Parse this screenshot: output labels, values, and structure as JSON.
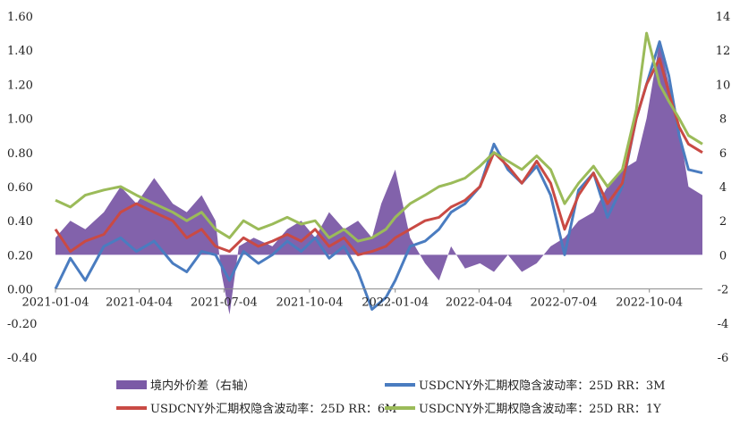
{
  "chart_data": {
    "type": "line",
    "x_ticks": [
      "2021-01-04",
      "2021-04-04",
      "2021-07-04",
      "2021-10-04",
      "2022-01-04",
      "2022-04-04",
      "2022-07-04",
      "2022-10-04"
    ],
    "y_left_ticks": [
      "1.60",
      "1.40",
      "1.20",
      "1.00",
      "0.80",
      "0.60",
      "0.40",
      "0.20",
      "0.00",
      "-0.20",
      "-0.40"
    ],
    "y_right_ticks": [
      "14",
      "12",
      "10",
      "8",
      "6",
      "4",
      "2",
      "0",
      "-2",
      "-4",
      "-6"
    ],
    "ylim_left": [
      -0.4,
      1.6
    ],
    "ylim_right": [
      -6,
      14
    ],
    "x_start": "2021-01-04",
    "x_end": "2022-11-30",
    "legend_position": "bottom",
    "series": [
      {
        "name": "境内外价差（右轴）",
        "type": "area",
        "axis": "right",
        "color": "#7B5AA6",
        "x": [
          "2021-01-04",
          "2021-01-20",
          "2021-02-05",
          "2021-02-25",
          "2021-03-15",
          "2021-04-01",
          "2021-04-20",
          "2021-05-10",
          "2021-05-25",
          "2021-06-10",
          "2021-06-25",
          "2021-07-01",
          "2021-07-10",
          "2021-07-20",
          "2021-08-05",
          "2021-08-25",
          "2021-09-10",
          "2021-09-25",
          "2021-10-10",
          "2021-10-25",
          "2021-11-10",
          "2021-11-25",
          "2021-12-10",
          "2021-12-20",
          "2022-01-04",
          "2022-01-20",
          "2022-02-05",
          "2022-02-20",
          "2022-03-05",
          "2022-03-20",
          "2022-04-05",
          "2022-04-20",
          "2022-05-05",
          "2022-05-20",
          "2022-06-05",
          "2022-06-20",
          "2022-07-05",
          "2022-07-20",
          "2022-08-05",
          "2022-08-20",
          "2022-09-05",
          "2022-09-20",
          "2022-10-01",
          "2022-10-15",
          "2022-10-25",
          "2022-11-05",
          "2022-11-15",
          "2022-11-30"
        ],
        "values": [
          1.0,
          2.0,
          1.5,
          2.5,
          4.0,
          3.0,
          4.5,
          3.0,
          2.5,
          3.5,
          2.0,
          -1.0,
          -3.5,
          0.5,
          1.0,
          0.5,
          1.5,
          2.0,
          1.0,
          2.5,
          1.5,
          2.0,
          1.0,
          3.0,
          5.0,
          1.0,
          -0.5,
          -1.5,
          0.5,
          -0.8,
          -0.5,
          -1.0,
          0.0,
          -1.0,
          -0.5,
          0.5,
          1.0,
          2.0,
          2.5,
          4.0,
          5.0,
          5.5,
          8.0,
          12.5,
          10.0,
          7.5,
          4.0,
          3.5
        ]
      },
      {
        "name": "USDCNY外汇期权隐含波动率：25D RR：3M",
        "type": "line",
        "axis": "left",
        "color": "#4A7CC0",
        "x": [
          "2021-01-04",
          "2021-01-20",
          "2021-02-05",
          "2021-02-25",
          "2021-03-15",
          "2021-04-01",
          "2021-04-20",
          "2021-05-10",
          "2021-05-25",
          "2021-06-10",
          "2021-06-25",
          "2021-07-10",
          "2021-07-25",
          "2021-08-10",
          "2021-08-25",
          "2021-09-10",
          "2021-09-25",
          "2021-10-10",
          "2021-10-25",
          "2021-11-10",
          "2021-11-25",
          "2021-12-10",
          "2021-12-25",
          "2022-01-04",
          "2022-01-20",
          "2022-02-05",
          "2022-02-20",
          "2022-03-05",
          "2022-03-20",
          "2022-04-05",
          "2022-04-20",
          "2022-05-05",
          "2022-05-20",
          "2022-06-05",
          "2022-06-20",
          "2022-07-05",
          "2022-07-20",
          "2022-08-05",
          "2022-08-20",
          "2022-09-05",
          "2022-09-20",
          "2022-10-01",
          "2022-10-15",
          "2022-10-25",
          "2022-11-05",
          "2022-11-15",
          "2022-11-30"
        ],
        "values": [
          0.0,
          0.18,
          0.05,
          0.25,
          0.3,
          0.22,
          0.28,
          0.15,
          0.1,
          0.22,
          0.2,
          0.05,
          0.22,
          0.15,
          0.2,
          0.28,
          0.22,
          0.3,
          0.18,
          0.25,
          0.1,
          -0.12,
          -0.05,
          0.05,
          0.25,
          0.28,
          0.35,
          0.45,
          0.5,
          0.6,
          0.85,
          0.7,
          0.62,
          0.72,
          0.55,
          0.2,
          0.58,
          0.68,
          0.42,
          0.6,
          1.0,
          1.2,
          1.45,
          1.25,
          0.9,
          0.7,
          0.68
        ]
      },
      {
        "name": "USDCNY外汇期权隐含波动率：25D RR：6M",
        "type": "line",
        "axis": "left",
        "color": "#C94A44",
        "x": [
          "2021-01-04",
          "2021-01-20",
          "2021-02-05",
          "2021-02-25",
          "2021-03-15",
          "2021-04-01",
          "2021-04-20",
          "2021-05-10",
          "2021-05-25",
          "2021-06-10",
          "2021-06-25",
          "2021-07-10",
          "2021-07-25",
          "2021-08-10",
          "2021-08-25",
          "2021-09-10",
          "2021-09-25",
          "2021-10-10",
          "2021-10-25",
          "2021-11-10",
          "2021-11-25",
          "2021-12-10",
          "2021-12-25",
          "2022-01-04",
          "2022-01-20",
          "2022-02-05",
          "2022-02-20",
          "2022-03-05",
          "2022-03-20",
          "2022-04-05",
          "2022-04-20",
          "2022-05-05",
          "2022-05-20",
          "2022-06-05",
          "2022-06-20",
          "2022-07-05",
          "2022-07-20",
          "2022-08-05",
          "2022-08-20",
          "2022-09-05",
          "2022-09-20",
          "2022-10-01",
          "2022-10-15",
          "2022-10-25",
          "2022-11-05",
          "2022-11-15",
          "2022-11-30"
        ],
        "values": [
          0.35,
          0.22,
          0.28,
          0.32,
          0.45,
          0.5,
          0.45,
          0.4,
          0.3,
          0.35,
          0.25,
          0.22,
          0.3,
          0.25,
          0.28,
          0.32,
          0.28,
          0.35,
          0.25,
          0.3,
          0.2,
          0.22,
          0.25,
          0.3,
          0.35,
          0.4,
          0.42,
          0.48,
          0.52,
          0.6,
          0.8,
          0.72,
          0.62,
          0.75,
          0.62,
          0.35,
          0.55,
          0.68,
          0.5,
          0.62,
          1.0,
          1.2,
          1.35,
          1.15,
          0.95,
          0.85,
          0.8
        ]
      },
      {
        "name": "USDCNY外汇期权隐含波动率：25D RR：1Y",
        "type": "line",
        "axis": "left",
        "color": "#9BBB59",
        "x": [
          "2021-01-04",
          "2021-01-20",
          "2021-02-05",
          "2021-02-25",
          "2021-03-15",
          "2021-04-01",
          "2021-04-20",
          "2021-05-10",
          "2021-05-25",
          "2021-06-10",
          "2021-06-25",
          "2021-07-10",
          "2021-07-25",
          "2021-08-10",
          "2021-08-25",
          "2021-09-10",
          "2021-09-25",
          "2021-10-10",
          "2021-10-25",
          "2021-11-10",
          "2021-11-25",
          "2021-12-10",
          "2021-12-25",
          "2022-01-04",
          "2022-01-20",
          "2022-02-05",
          "2022-02-20",
          "2022-03-05",
          "2022-03-20",
          "2022-04-05",
          "2022-04-20",
          "2022-05-05",
          "2022-05-20",
          "2022-06-05",
          "2022-06-20",
          "2022-07-05",
          "2022-07-20",
          "2022-08-05",
          "2022-08-20",
          "2022-09-05",
          "2022-09-20",
          "2022-10-01",
          "2022-10-15",
          "2022-10-25",
          "2022-11-05",
          "2022-11-15",
          "2022-11-30"
        ],
        "values": [
          0.52,
          0.48,
          0.55,
          0.58,
          0.6,
          0.55,
          0.5,
          0.45,
          0.4,
          0.45,
          0.35,
          0.3,
          0.4,
          0.35,
          0.38,
          0.42,
          0.38,
          0.4,
          0.3,
          0.35,
          0.28,
          0.3,
          0.35,
          0.42,
          0.5,
          0.55,
          0.6,
          0.62,
          0.65,
          0.72,
          0.8,
          0.75,
          0.7,
          0.78,
          0.7,
          0.5,
          0.62,
          0.72,
          0.6,
          0.7,
          1.05,
          1.5,
          1.2,
          1.1,
          1.0,
          0.9,
          0.85
        ]
      }
    ]
  }
}
